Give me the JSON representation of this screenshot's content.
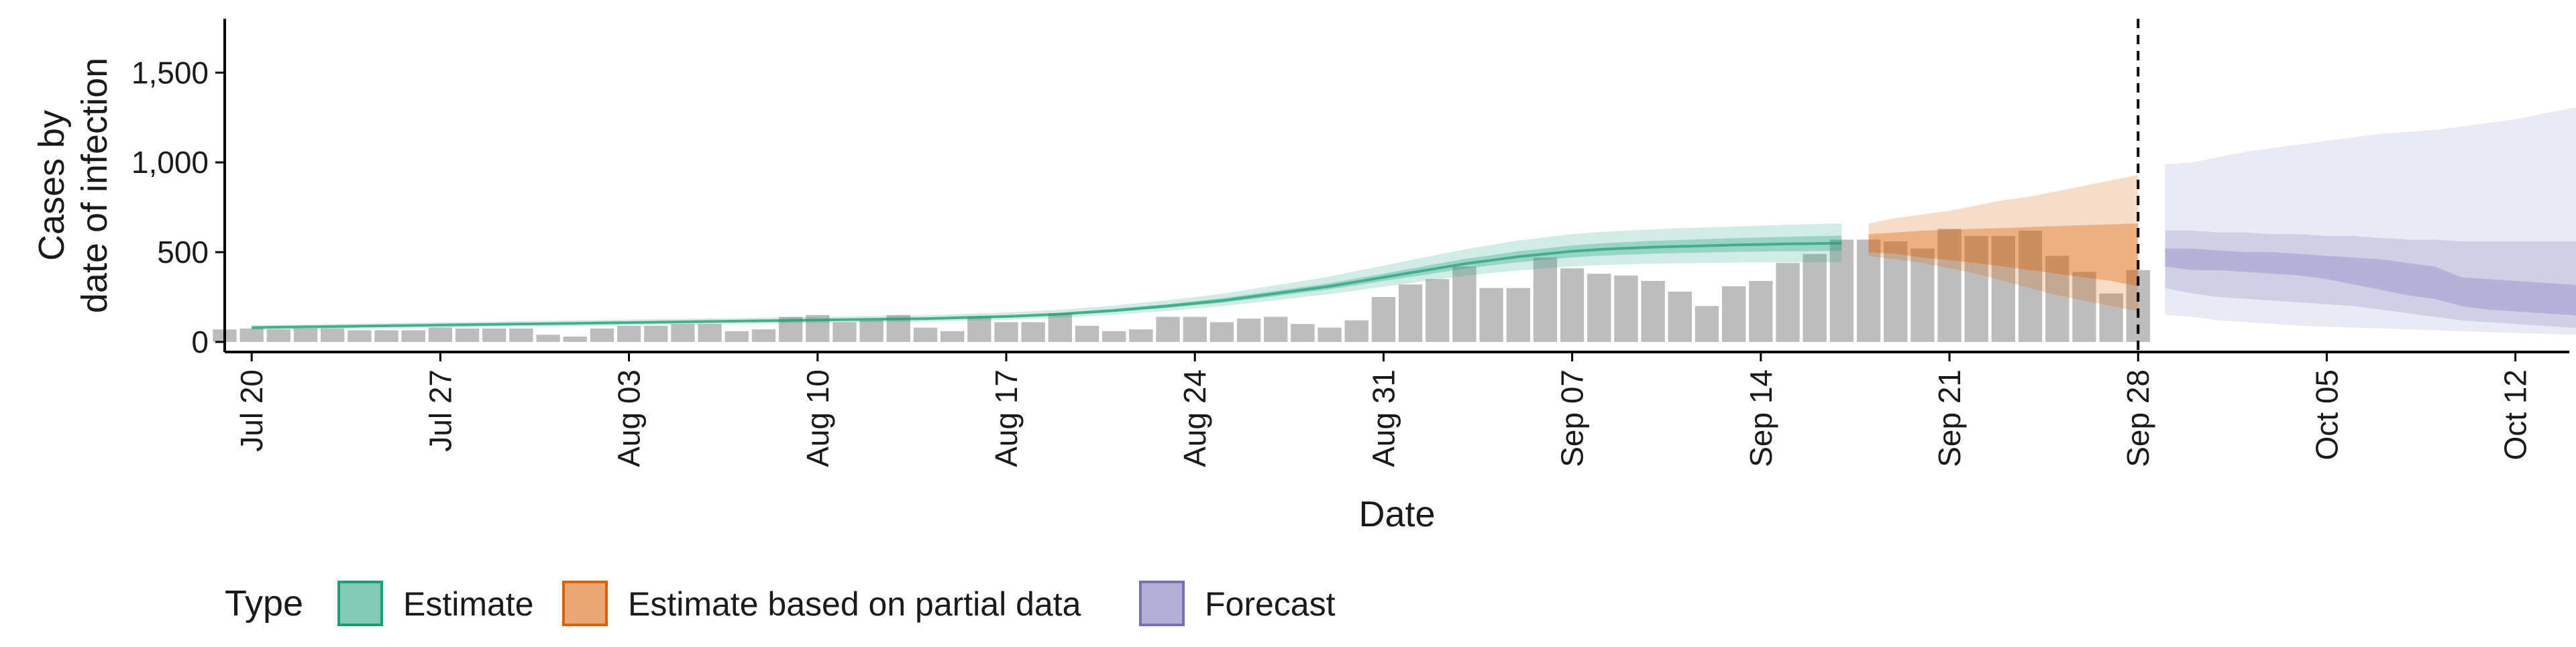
{
  "chart_data": {
    "type": "bar+area",
    "xlabel": "Date",
    "ylabel_lines": [
      "Cases by",
      "date of infection"
    ],
    "ylim": [
      0,
      1800
    ],
    "y_ticks": [
      0,
      500,
      1000,
      1500
    ],
    "y_tick_labels": [
      "0",
      "500",
      "1,000",
      "1,500"
    ],
    "x_range": [
      "2020-07-19",
      "2020-10-14"
    ],
    "x_ticks": [
      "2020-07-20",
      "2020-07-27",
      "2020-08-03",
      "2020-08-10",
      "2020-08-17",
      "2020-08-24",
      "2020-08-31",
      "2020-09-07",
      "2020-09-14",
      "2020-09-21",
      "2020-09-28",
      "2020-10-05",
      "2020-10-12"
    ],
    "x_tick_labels": [
      "Jul 20",
      "Jul 27",
      "Aug 03",
      "Aug 10",
      "Aug 17",
      "Aug 24",
      "Aug 31",
      "Sep 07",
      "Sep 14",
      "Sep 21",
      "Sep 28",
      "Oct 05",
      "Oct 12"
    ],
    "vline_date": "2020-09-28",
    "colors": {
      "bars": "#bdbdbd",
      "estimate": "#1b9e77",
      "partial": "#d95f02",
      "forecast": "#7570b3",
      "axis": "#000000"
    },
    "bars": {
      "start_date": "2020-07-19",
      "values": [
        70,
        75,
        70,
        75,
        75,
        65,
        65,
        65,
        80,
        75,
        75,
        75,
        40,
        30,
        75,
        90,
        90,
        100,
        100,
        60,
        70,
        140,
        150,
        110,
        120,
        150,
        80,
        60,
        140,
        110,
        110,
        160,
        90,
        60,
        70,
        140,
        140,
        110,
        130,
        140,
        100,
        80,
        120,
        250,
        320,
        350,
        420,
        300,
        300,
        470,
        410,
        380,
        370,
        340,
        280,
        200,
        310,
        340,
        440,
        490,
        570,
        570,
        560,
        520,
        630,
        590,
        590,
        620,
        480,
        390,
        270,
        400
      ]
    },
    "estimate": {
      "start_date": "2020-07-20",
      "median": [
        80,
        82,
        84,
        86,
        88,
        90,
        92,
        94,
        96,
        98,
        100,
        102,
        104,
        106,
        108,
        110,
        112,
        114,
        116,
        118,
        120,
        122,
        124,
        126,
        128,
        130,
        134,
        138,
        142,
        148,
        155,
        165,
        175,
        188,
        200,
        215,
        230,
        250,
        270,
        290,
        310,
        335,
        360,
        385,
        410,
        435,
        455,
        475,
        490,
        505,
        515,
        522,
        528,
        532,
        536,
        540,
        543,
        546,
        548,
        550
      ],
      "inner_lower": [
        75,
        77,
        79,
        80,
        82,
        84,
        86,
        88,
        90,
        92,
        94,
        96,
        98,
        100,
        102,
        104,
        106,
        108,
        110,
        112,
        114,
        116,
        118,
        120,
        122,
        124,
        128,
        132,
        136,
        142,
        148,
        157,
        166,
        178,
        190,
        204,
        218,
        236,
        255,
        274,
        293,
        316,
        340,
        362,
        385,
        408,
        427,
        444,
        458,
        471,
        480,
        486,
        491,
        495,
        498,
        501,
        503,
        505,
        506,
        508
      ],
      "inner_upper": [
        86,
        88,
        90,
        92,
        94,
        96,
        98,
        100,
        102,
        104,
        106,
        108,
        110,
        112,
        114,
        116,
        118,
        120,
        122,
        124,
        126,
        128,
        130,
        132,
        134,
        136,
        140,
        145,
        149,
        155,
        162,
        173,
        184,
        198,
        211,
        227,
        243,
        264,
        285,
        306,
        327,
        354,
        380,
        408,
        435,
        462,
        483,
        505,
        521,
        537,
        548,
        556,
        563,
        568,
        573,
        578,
        582,
        586,
        589,
        592
      ],
      "outer_lower": [
        68,
        70,
        72,
        73,
        75,
        77,
        78,
        80,
        82,
        84,
        86,
        87,
        89,
        91,
        93,
        95,
        97,
        98,
        100,
        102,
        104,
        106,
        108,
        110,
        111,
        113,
        117,
        120,
        124,
        129,
        135,
        143,
        151,
        162,
        173,
        186,
        199,
        215,
        232,
        249,
        266,
        287,
        308,
        328,
        348,
        368,
        384,
        398,
        410,
        420,
        428,
        432,
        436,
        438,
        440,
        442,
        443,
        444,
        444,
        445
      ],
      "outer_upper": [
        93,
        95,
        97,
        100,
        102,
        104,
        107,
        109,
        111,
        113,
        116,
        118,
        120,
        122,
        124,
        127,
        129,
        131,
        133,
        136,
        138,
        140,
        142,
        145,
        147,
        149,
        154,
        159,
        164,
        171,
        179,
        191,
        203,
        218,
        232,
        250,
        268,
        292,
        316,
        340,
        364,
        395,
        425,
        456,
        485,
        515,
        540,
        565,
        583,
        600,
        612,
        620,
        627,
        633,
        638,
        643,
        648,
        653,
        656,
        660
      ]
    },
    "partial": {
      "start_date": "2020-09-18",
      "median": [
        550,
        552,
        548,
        545,
        540,
        535,
        530,
        525,
        520,
        515,
        510
      ],
      "inner_lower": [
        500,
        490,
        470,
        455,
        440,
        420,
        400,
        380,
        360,
        340,
        310
      ],
      "inner_upper": [
        600,
        610,
        620,
        625,
        630,
        635,
        640,
        645,
        650,
        655,
        660
      ],
      "outer_lower": [
        480,
        460,
        440,
        410,
        380,
        340,
        300,
        260,
        230,
        200,
        170
      ],
      "outer_upper": [
        660,
        690,
        710,
        730,
        760,
        790,
        810,
        840,
        870,
        900,
        930
      ]
    },
    "forecast": {
      "start_date": "2020-09-29",
      "inner_lower": [
        420,
        400,
        400,
        390,
        380,
        370,
        350,
        320,
        290,
        260,
        240,
        200,
        180,
        170,
        160,
        150,
        140,
        130,
        120,
        110,
        100,
        90,
        80,
        70,
        60
      ],
      "inner_upper": [
        520,
        520,
        510,
        500,
        500,
        490,
        480,
        470,
        460,
        440,
        420,
        360,
        350,
        340,
        330,
        320,
        310,
        300,
        290,
        280,
        270,
        260,
        250,
        245,
        240
      ],
      "outer_lower": [
        300,
        270,
        250,
        240,
        230,
        220,
        210,
        200,
        180,
        160,
        140,
        120,
        110,
        100,
        90,
        80,
        70,
        60,
        50,
        40,
        35,
        30,
        30,
        25,
        20
      ],
      "outer_upper": [
        620,
        620,
        610,
        610,
        600,
        600,
        590,
        590,
        580,
        570,
        570,
        560,
        560,
        560,
        560,
        560,
        560,
        560,
        555,
        555,
        550,
        550,
        550,
        545,
        540
      ],
      "wide_lower": [
        150,
        140,
        120,
        110,
        100,
        90,
        85,
        80,
        75,
        70,
        65,
        60,
        55,
        50,
        45,
        40,
        38,
        35,
        32,
        30,
        28,
        25,
        22,
        20,
        18
      ],
      "wide_upper": [
        990,
        1000,
        1030,
        1060,
        1080,
        1100,
        1120,
        1140,
        1160,
        1170,
        1180,
        1200,
        1220,
        1240,
        1270,
        1300,
        1320,
        1350,
        1380,
        1420,
        1460,
        1500,
        1550,
        1620,
        1690
      ]
    },
    "legend": {
      "title": "Type",
      "items": [
        {
          "label": "Estimate",
          "color": "#1b9e77"
        },
        {
          "label": "Estimate based on partial data",
          "color": "#d95f02"
        },
        {
          "label": "Forecast",
          "color": "#7570b3"
        }
      ],
      "position": "bottom"
    }
  }
}
